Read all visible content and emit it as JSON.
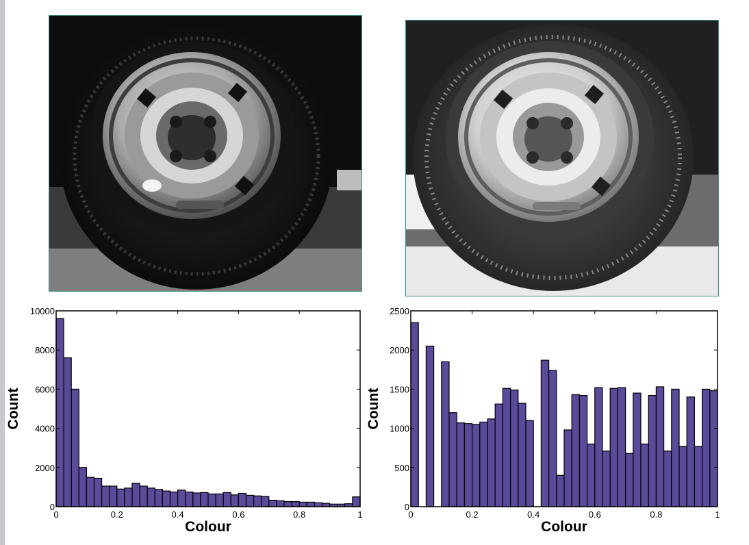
{
  "photos": [
    {
      "name": "original-tyre-image",
      "enhancement": "original",
      "icon": "wheel-photo-icon"
    },
    {
      "name": "equalized-tyre-image",
      "enhancement": "histogram-equalized",
      "icon": "wheel-photo-icon"
    }
  ],
  "chart_data": [
    {
      "type": "bar",
      "title": "",
      "xlabel": "Colour",
      "ylabel": "Count",
      "xlim": [
        0,
        1
      ],
      "ylim": [
        0,
        10000
      ],
      "xticks": [
        "0",
        "0.2",
        "0.4",
        "0.6",
        "0.8",
        "1"
      ],
      "yticks": [
        "0",
        "2000",
        "4000",
        "6000",
        "8000",
        "10000"
      ],
      "bin_width": 0.025,
      "bar_color": "#5b4a9a",
      "values": [
        9600,
        7600,
        6000,
        2000,
        1500,
        1450,
        1050,
        1050,
        900,
        950,
        1200,
        1050,
        950,
        880,
        800,
        750,
        850,
        750,
        700,
        720,
        650,
        650,
        720,
        600,
        680,
        580,
        550,
        520,
        330,
        300,
        260,
        260,
        230,
        230,
        200,
        170,
        130,
        130,
        150,
        500
      ],
      "grid": false
    },
    {
      "type": "bar",
      "title": "",
      "xlabel": "Colour",
      "ylabel": "Count",
      "xlim": [
        0,
        1
      ],
      "ylim": [
        0,
        2500
      ],
      "xticks": [
        "0",
        "0.2",
        "0.4",
        "0.6",
        "0.8",
        "1"
      ],
      "yticks": [
        "0",
        "500",
        "1000",
        "1500",
        "2000",
        "2500"
      ],
      "bin_width": 0.025,
      "bar_color": "#5b4a9a",
      "values": [
        2350,
        0,
        2050,
        0,
        1850,
        1200,
        1070,
        1060,
        1050,
        1080,
        1120,
        1310,
        1510,
        1490,
        1320,
        1100,
        0,
        1870,
        1740,
        400,
        980,
        1430,
        1420,
        800,
        1520,
        710,
        1510,
        1520,
        680,
        1450,
        800,
        1420,
        1530,
        710,
        1500,
        770,
        1400,
        770,
        1500,
        1480
      ],
      "grid": false
    }
  ]
}
